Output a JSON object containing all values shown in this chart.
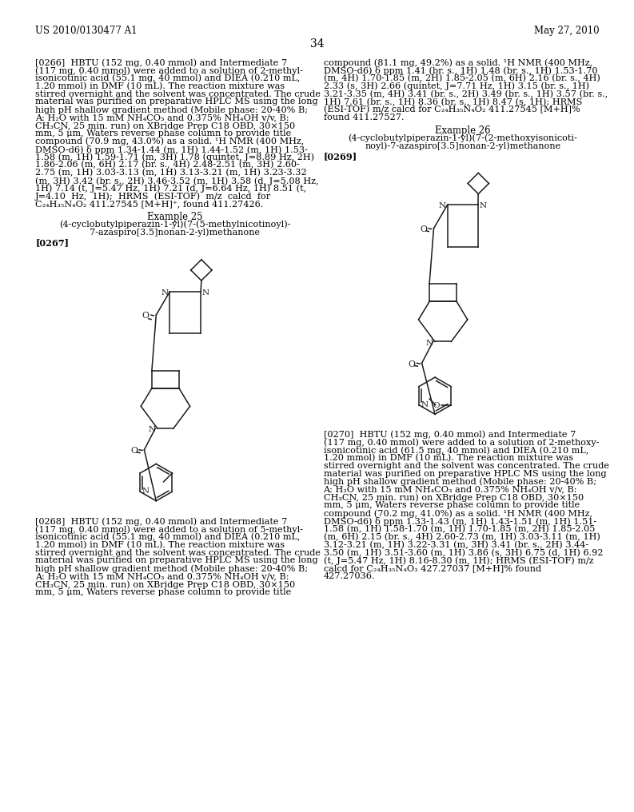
{
  "page_number": "34",
  "header_left": "US 2010/0130477 A1",
  "header_right": "May 27, 2010",
  "bg": "#ffffff",
  "fg": "#000000",
  "p266_left_lines": [
    "[0266]  HBTU (152 mg, 0.40 mmol) and Intermediate 7",
    "(117 mg, 0.40 mmol) were added to a solution of 2-methyl-",
    "isonicotinic acid (55.1 mg, 40 mmol) and DIEA (0.210 mL,",
    "1.20 mmol) in DMF (10 mL). The reaction mixture was",
    "stirred overnight and the solvent was concentrated. The crude",
    "material was purified on preparative HPLC MS using the long",
    "high pH shallow gradient method (Mobile phase: 20-40% B;",
    "A: H₂O with 15 mM NH₄CO₃ and 0.375% NH₄OH v/v, B:",
    "CH₃CN, 25 min. run) on XBridge Prep C18 OBD, 30×150",
    "mm, 5 μm, Waters reverse phase column to provide title",
    "compound (70.9 mg, 43.0%) as a solid. ¹H NMR (400 MHz,",
    "DMSO-d6) δ ppm 1.34-1.44 (m, 1H) 1.44-1.52 (m, 1H) 1.53-",
    "1.58 (m, 1H) 1.59-1.71 (m, 3H) 1.78 (quintet, J=8.89 Hz, 2H)",
    "1.86-2.06 (m, 6H) 2.17 (br. s., 4H) 2.48-2.51 (m, 3H) 2.60-",
    "2.75 (m, 1H) 3.03-3.13 (m, 1H) 3.13-3.21 (m, 1H) 3.23-3.32",
    "(m, 3H) 3.42 (br. s., 2H) 3.46-3.52 (m, 1H) 3.58 (d, J=5.08 Hz,",
    "1H) 7.14 (t, J=5.47 Hz, 1H) 7.21 (d, J=6.64 Hz, 1H) 8.51 (t,",
    "J=4.10  Hz,  1H);  HRMS  (ESI-TOF)  m/z  calcd  for",
    "C₂₄H₃₅N₄O₂ 411.27545 [M+H]⁺, found 411.27426."
  ],
  "p266_right_lines": [
    "compound (81.1 mg, 49.2%) as a solid. ¹H NMR (400 MHz,",
    "DMSO-d6) δ ppm 1.41 (br. s., 1H) 1.48 (br. s., 1H) 1.53-1.70",
    "(m, 4H) 1.70-1.85 (m, 2H) 1.85-2.05 (m, 6H) 2.16 (br. s., 4H)",
    "2.33 (s, 3H) 2.66 (quintet, J=7.71 Hz, 1H) 3.15 (br. s., 1H)",
    "3.21-3.35 (m, 4H) 3.41 (br. s., 2H) 3.49 (br. s., 1H) 3.57 (br. s.,",
    "1H) 7.61 (br. s., 1H) 8.36 (br. s., 1H) 8.47 (s, 1H); HRMS",
    "(ESI-TOF) m/z calcd for C₂₄H₃₅N₄O₂ 411.27545 [M+H]%",
    "found 411.27527."
  ],
  "ex25_title": "Example 25",
  "ex25_name1": "(4-cyclobutylpiperazin-1-yl)(7-(5-methylnicotinoyl)-",
  "ex25_name2": "7-azaspiro[3.5]nonan-2-yl)methanone",
  "p267_label": "[0267]",
  "ex26_title": "Example 26",
  "ex26_name1": "(4-cyclobutylpiperazin-1-yl)(7-(2-methoxyisonicoti-",
  "ex26_name2": "noyl)-7-azaspiro[3.5]nonan-2-yl)methanone",
  "p269_label": "[0269]",
  "p268_lines": [
    "[0268]  HBTU (152 mg, 0.40 mmol) and Intermediate 7",
    "(117 mg, 0.40 mmol) were added to a solution of 5-methyl-",
    "isonicotinic acid (55.1 mg, 40 mmol) and DIEA (0.210 mL,",
    "1.20 mmol) in DMF (10 mL). The reaction mixture was",
    "stirred overnight and the solvent was concentrated. The crude",
    "material was purified on preparative HPLC MS using the long",
    "high pH shallow gradient method (Mobile phase: 20-40% B;",
    "A: H₂O with 15 mM NH₄CO₃ and 0.375% NH₄OH v/v, B:",
    "CH₃CN, 25 min. run) on XBridge Prep C18 OBD, 30×150",
    "mm, 5 μm, Waters reverse phase column to provide title"
  ],
  "p270_lines": [
    "[0270]  HBTU (152 mg, 0.40 mmol) and Intermediate 7",
    "(117 mg, 0.40 mmol) were added to a solution of 2-methoxy-",
    "isonicotinic acid (61.5 mg, 40 mmol) and DIEA (0.210 mL,",
    "1.20 mmol) in DMF (10 mL). The reaction mixture was",
    "stirred overnight and the solvent was concentrated. The crude",
    "material was purified on preparative HPLC MS using the long",
    "high pH shallow gradient method (Mobile phase: 20-40% B;",
    "A: H₂O with 15 mM NH₄CO₃ and 0.375% NH₄OH v/v, B:",
    "CH₃CN, 25 min. run) on XBridge Prep C18 OBD, 30×150",
    "mm, 5 μm, Waters reverse phase column to provide title",
    "compound (70.2 mg, 41.0%) as a solid. ¹H NMR (400 MHz,",
    "DMSO-d6) δ ppm 1.33-1.43 (m, 1H) 1.43-1.51 (m, 1H) 1.51-",
    "1.58 (m, 1H) 1.58-1.70 (m, 1H) 1.70-1.85 (m, 2H) 1.85-2.05",
    "(m, 6H) 2.15 (br. s., 4H) 2.60-2.73 (m, 1H) 3.03-3.11 (m, 1H)",
    "3.12-3.21 (m, 1H) 3.22-3.31 (m, 3H) 3.41 (br. s., 2H) 3.44-",
    "3.50 (m, 1H) 3.51-3.60 (m, 1H) 3.86 (s, 3H) 6.75 (d, 1H) 6.92",
    "(t, J=5.47 Hz, 1H) 8.16-8.30 (m, 1H); HRMS (ESI-TOF) m/z",
    "calcd for C₂₄H₃₅N₄O₃ 427.27037 [M+H]% found",
    "427.27036."
  ]
}
